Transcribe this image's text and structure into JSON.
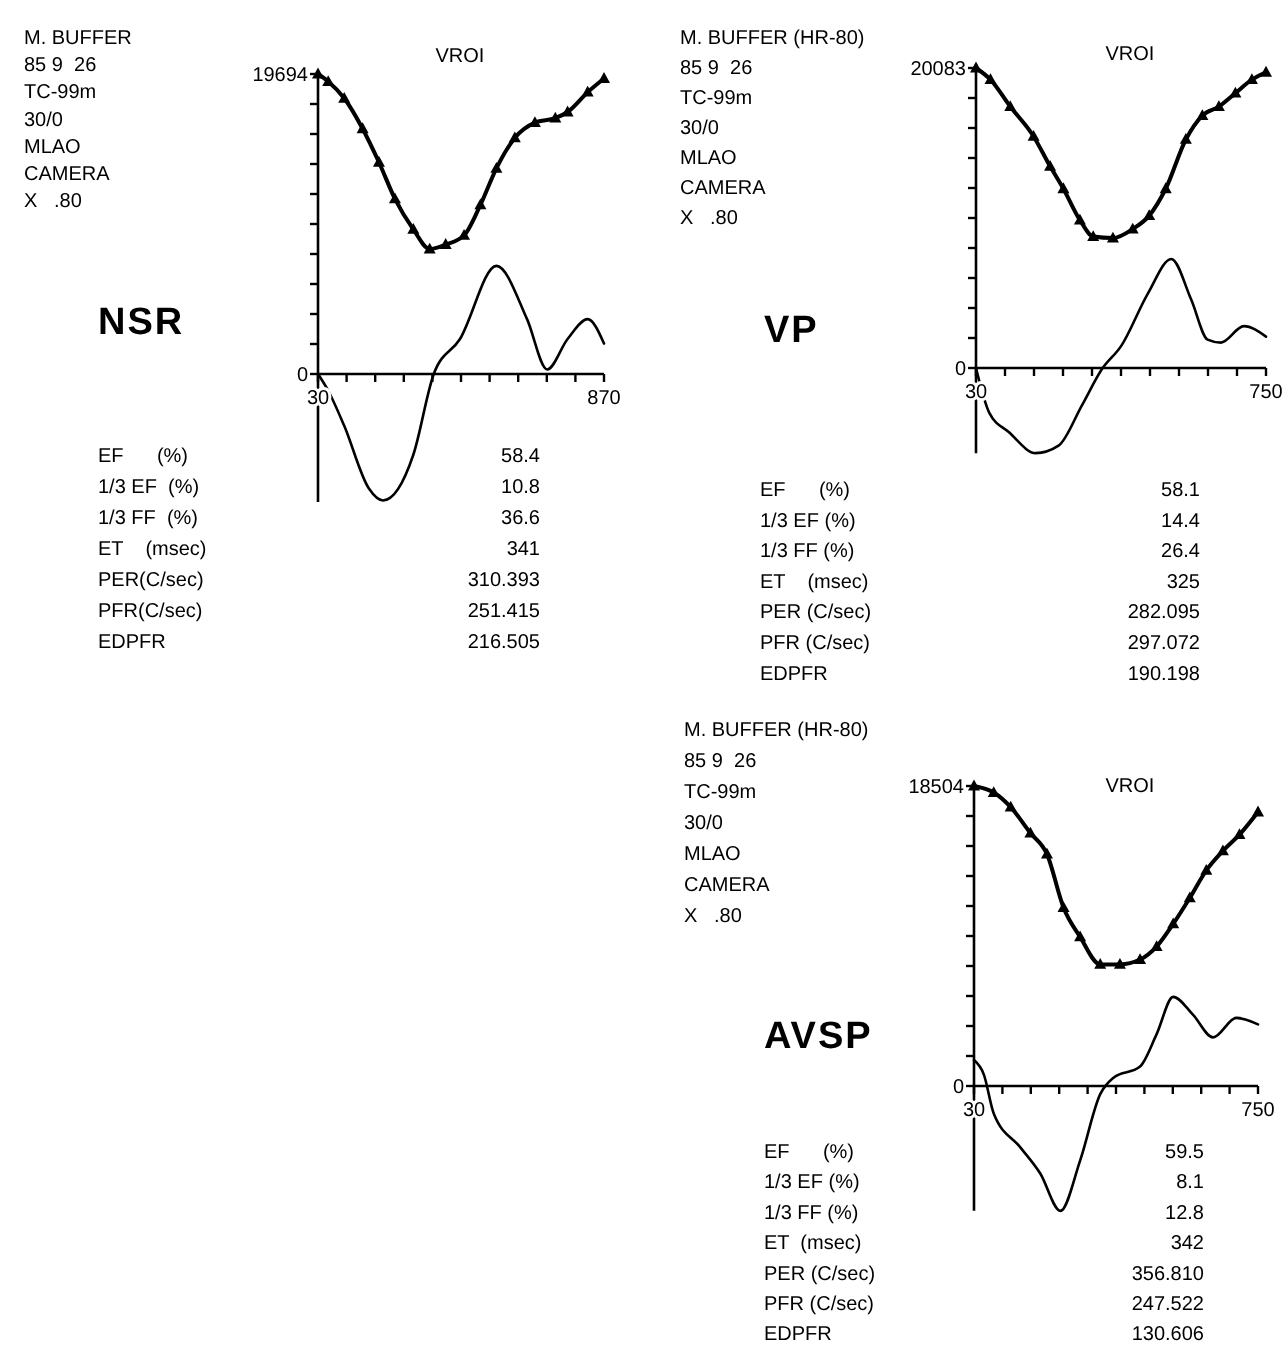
{
  "chart_data": [
    {
      "type": "line",
      "title": "VROI",
      "subtitle": "NSR",
      "xlim": [
        30,
        870
      ],
      "ylim": [
        -8400,
        19694
      ],
      "xticks": [
        30,
        {
          "value": 114,
          "label": null
        },
        {
          "value": 198,
          "label": null
        },
        {
          "value": 282,
          "label": null
        },
        {
          "value": 366,
          "label": null
        },
        {
          "value": 450,
          "label": null
        },
        {
          "value": 534,
          "label": null
        },
        {
          "value": 618,
          "label": null
        },
        {
          "value": 702,
          "label": null
        },
        {
          "value": 786,
          "label": null
        },
        870
      ],
      "yticks": [
        0,
        {
          "value": 1969.4,
          "label": null
        },
        {
          "value": 3938.8,
          "label": null
        },
        {
          "value": 5908.2,
          "label": null
        },
        {
          "value": 7877.6,
          "label": null
        },
        {
          "value": 9847,
          "label": null
        },
        {
          "value": 11816.4,
          "label": null
        },
        {
          "value": 13785.8,
          "label": null
        },
        {
          "value": 15755.2,
          "label": null
        },
        {
          "value": 17724.6,
          "label": null
        },
        19694
      ],
      "series": [
        {
          "color": "#000000",
          "marker": "triangle",
          "x": [
            30,
            60,
            107,
            161,
            209,
            256,
            310,
            358,
            405,
            459,
            507,
            554,
            608,
            667,
            727,
            763,
            822,
            870
          ],
          "values": [
            19694,
            19200,
            18100,
            16100,
            13900,
            11500,
            9500,
            8200,
            8500,
            9100,
            11100,
            13500,
            15500,
            16500,
            16800,
            17200,
            18500,
            19400
          ]
        },
        {
          "color": "#000000",
          "marker": "none",
          "x": [
            30,
            60,
            107,
            179,
            221,
            310,
            370,
            447,
            554,
            644,
            703,
            763,
            822,
            870
          ],
          "values": [
            0,
            -1100,
            -3400,
            -7500,
            -8300,
            -5300,
            0,
            2300,
            7100,
            3600,
            300,
            2300,
            3600,
            2000
          ]
        }
      ],
      "annotations": [
        "M. BUFFER",
        "85 9  26",
        "TC-99m",
        "30/0",
        "MLAO",
        "CAMERA",
        "X   .80",
        "EF      (%)",
        "58.4",
        "1/3 EF  (%)",
        "10.8",
        "1/3 FF  (%)",
        "36.6",
        "ET    (msec)",
        "341",
        "PER(C/sec)",
        "310.393",
        "PFR(C/sec)",
        "251.415",
        "EDPFR",
        "216.505"
      ]
    },
    {
      "type": "line",
      "title": "VROI",
      "subtitle": "VP",
      "xlim": [
        30,
        750
      ],
      "ylim": [
        -5700,
        20083
      ],
      "xticks": [
        30,
        {
          "value": 102,
          "label": null
        },
        {
          "value": 174,
          "label": null
        },
        {
          "value": 246,
          "label": null
        },
        {
          "value": 318,
          "label": null
        },
        {
          "value": 390,
          "label": null
        },
        {
          "value": 462,
          "label": null
        },
        {
          "value": 534,
          "label": null
        },
        {
          "value": 606,
          "label": null
        },
        {
          "value": 678,
          "label": null
        },
        750
      ],
      "yticks": [
        0,
        {
          "value": 2008.3,
          "label": null
        },
        {
          "value": 4016.6,
          "label": null
        },
        {
          "value": 6024.9,
          "label": null
        },
        {
          "value": 8033.2,
          "label": null
        },
        {
          "value": 10041.5,
          "label": null
        },
        {
          "value": 12049.8,
          "label": null
        },
        {
          "value": 14058.1,
          "label": null
        },
        {
          "value": 16066.4,
          "label": null
        },
        {
          "value": 18074.7,
          "label": null
        },
        20083
      ],
      "series": [
        {
          "color": "#000000",
          "marker": "triangle",
          "x": [
            30,
            66,
            115,
            173,
            214,
            247,
            288,
            321,
            370,
            419,
            460,
            501,
            551,
            592,
            633,
            674,
            715,
            750
          ],
          "values": [
            20083,
            19300,
            17500,
            15500,
            13500,
            12000,
            9900,
            8800,
            8700,
            9300,
            10200,
            12000,
            15300,
            16900,
            17500,
            18400,
            19300,
            19800
          ]
        },
        {
          "color": "#000000",
          "marker": "none",
          "x": [
            30,
            63,
            112,
            178,
            235,
            293,
            342,
            391,
            457,
            515,
            564,
            605,
            638,
            695,
            750
          ],
          "values": [
            0,
            -3000,
            -4300,
            -5700,
            -5200,
            -2500,
            -100,
            1500,
            5000,
            7300,
            4600,
            1900,
            1700,
            2800,
            2100
          ]
        }
      ],
      "annotations": [
        "M. BUFFER (HR-80)",
        "85 9  26",
        "TC-99m",
        "30/0",
        "MLAO",
        "CAMERA",
        "X   .80",
        "EF      (%)",
        "58.1",
        "1/3 EF (%)",
        "14.4",
        "1/3 FF (%)",
        "26.4",
        "ET    (msec)",
        "325",
        "PER (C/sec)",
        "282.095",
        "PFR (C/sec)",
        "297.072",
        "EDPFR",
        "190.198"
      ]
    },
    {
      "type": "line",
      "title": "VROI",
      "subtitle": "AVSP",
      "xlim": [
        30,
        750
      ],
      "ylim": [
        -7700,
        18504
      ],
      "xticks": [
        30,
        {
          "value": 102,
          "label": null
        },
        {
          "value": 174,
          "label": null
        },
        {
          "value": 246,
          "label": null
        },
        {
          "value": 318,
          "label": null
        },
        {
          "value": 390,
          "label": null
        },
        {
          "value": 462,
          "label": null
        },
        {
          "value": 534,
          "label": null
        },
        {
          "value": 606,
          "label": null
        },
        {
          "value": 678,
          "label": null
        },
        750
      ],
      "yticks": [
        0,
        {
          "value": 1850.4,
          "label": null
        },
        {
          "value": 3700.8,
          "label": null
        },
        {
          "value": 5551.2,
          "label": null
        },
        {
          "value": 7401.6,
          "label": null
        },
        {
          "value": 9252,
          "label": null
        },
        {
          "value": 11102.4,
          "label": null
        },
        {
          "value": 12952.8,
          "label": null
        },
        {
          "value": 14803.2,
          "label": null
        },
        {
          "value": 16653.6,
          "label": null
        },
        18504
      ],
      "series": [
        {
          "color": "#000000",
          "marker": "triangle",
          "x": [
            30,
            80,
            123,
            173,
            215,
            257,
            299,
            350,
            400,
            451,
            493,
            535,
            577,
            619,
            661,
            703,
            750
          ],
          "values": [
            18504,
            18100,
            17200,
            15600,
            14300,
            11000,
            9200,
            7500,
            7500,
            7800,
            8600,
            10000,
            11600,
            13300,
            14500,
            15500,
            16900
          ]
        },
        {
          "color": "#000000",
          "marker": "none",
          "x": [
            30,
            55,
            80,
            148,
            198,
            249,
            299,
            350,
            383,
            451,
            493,
            535,
            585,
            636,
            695,
            750
          ],
          "values": [
            1600,
            700,
            -1700,
            -3800,
            -5400,
            -7700,
            -4600,
            -500,
            500,
            1200,
            3200,
            5500,
            4400,
            3000,
            4200,
            3800
          ]
        }
      ],
      "annotations": [
        "M. BUFFER (HR-80)",
        "85 9  26",
        "TC-99m",
        "30/0",
        "MLAO",
        "CAMERA",
        "X   .80",
        "EF      (%)",
        "59.5",
        "1/3 EF (%)",
        "8.1",
        "1/3 FF (%)",
        "12.8",
        "ET  (msec)",
        "342",
        "PER (C/sec)",
        "356.810",
        "PFR (C/sec)",
        "247.522",
        "EDPFR",
        "130.606"
      ]
    }
  ]
}
